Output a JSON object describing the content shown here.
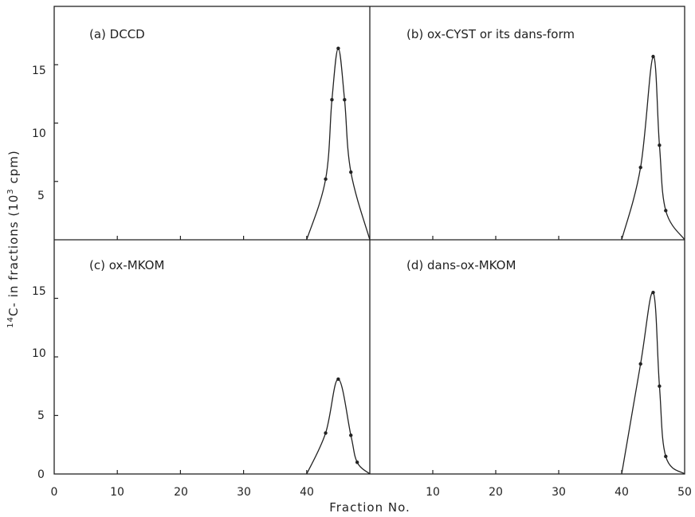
{
  "chart_data": [
    {
      "type": "line",
      "panel": "a",
      "title": "(a) DCCD",
      "xlim": [
        0,
        50
      ],
      "ylim": [
        0,
        20
      ],
      "x": [
        43,
        44,
        45,
        46,
        47
      ],
      "y": [
        5.2,
        12.0,
        16.4,
        12.0,
        5.8
      ]
    },
    {
      "type": "line",
      "panel": "b",
      "title": "(b) ox-CYST or its dans-form",
      "xlim": [
        0,
        50
      ],
      "ylim": [
        0,
        20
      ],
      "x": [
        43,
        45,
        46,
        47
      ],
      "y": [
        6.2,
        15.7,
        8.1,
        2.5
      ]
    },
    {
      "type": "line",
      "panel": "c",
      "title": "(c) ox-MKOM",
      "xlim": [
        0,
        50
      ],
      "ylim": [
        0,
        20
      ],
      "x": [
        43,
        45,
        47,
        48
      ],
      "y": [
        3.5,
        8.1,
        3.3,
        1.0
      ]
    },
    {
      "type": "line",
      "panel": "d",
      "title": "(d) dans-ox-MKOM",
      "xlim": [
        0,
        50
      ],
      "ylim": [
        0,
        20
      ],
      "x": [
        43,
        45,
        46,
        47
      ],
      "y": [
        9.4,
        15.5,
        7.5,
        1.5
      ]
    }
  ],
  "axes": {
    "xlabel": "Fraction No.",
    "ylabel_pre": "14",
    "ylabel_mid": "C- in fractions (10",
    "ylabel_sup": "3",
    "ylabel_post": " cpm)",
    "x_ticks_left": [
      "0",
      "10",
      "20",
      "30",
      "40"
    ],
    "x_ticks_right": [
      "10",
      "20",
      "30",
      "40",
      "50"
    ],
    "y_ticks": [
      "5",
      "10",
      "15"
    ],
    "y_zero": "0"
  }
}
